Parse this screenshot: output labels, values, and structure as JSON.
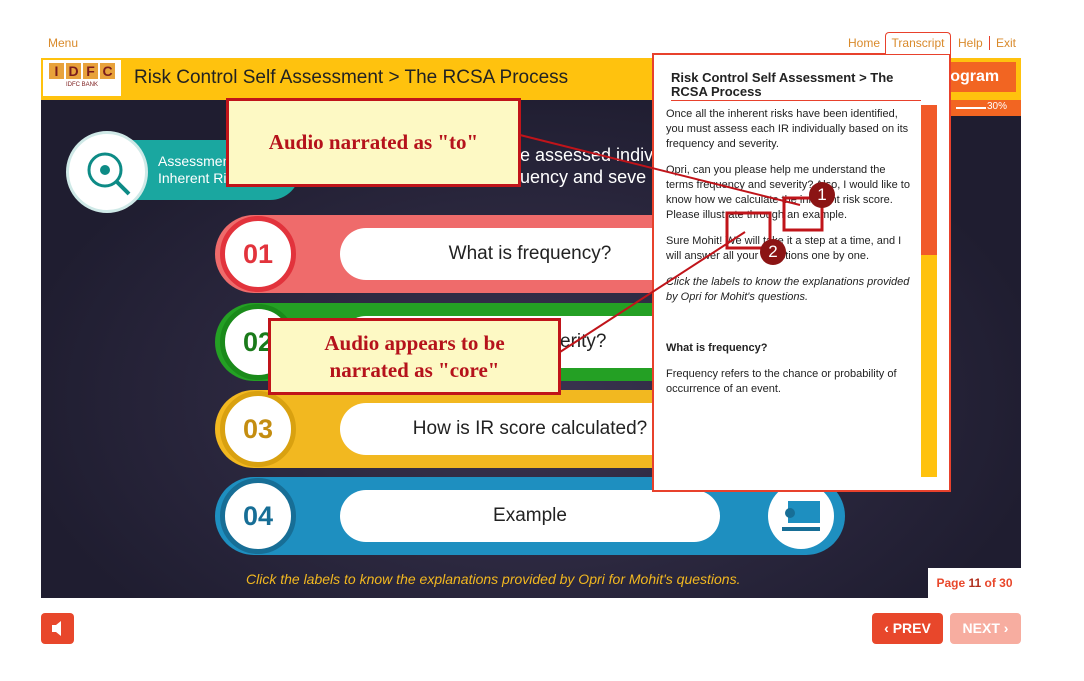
{
  "top_nav": {
    "menu": "Menu",
    "links": [
      "Home",
      "Transcript",
      "Help",
      "Exit"
    ]
  },
  "header": {
    "logo_letters": [
      "I",
      "D",
      "F",
      "C"
    ],
    "logo_caption": "IDFC BANK",
    "title": "Risk Control Self Assessment > The RCSA Process",
    "program_fragment": "rogram",
    "progress": "30%"
  },
  "topic": {
    "badge_lines": [
      "Assessmen",
      "Inherent Ri"
    ],
    "question_lines": [
      "e assessed indiv",
      "uency and seve"
    ]
  },
  "items": [
    {
      "number": "01",
      "label": "What is frequency?"
    },
    {
      "number": "02",
      "label": "erity?"
    },
    {
      "number": "03",
      "label": "How is IR score calculated?"
    },
    {
      "number": "04",
      "label": "Example"
    }
  ],
  "instruction": "Click the labels to know the explanations provided by Opri for Mohit's questions.",
  "pagination": {
    "prefix": "Page",
    "current": "11",
    "suffix": "of 30"
  },
  "buttons": {
    "prev": "PREV",
    "next": "NEXT"
  },
  "transcript": {
    "title": "Risk Control Self Assessment > The RCSA Process",
    "paragraphs": [
      "Once all the inherent risks have been identified, you must assess each IR individually based on its frequency and severity.",
      "Opri, can you please help me understand the terms frequency and severity? Also, I would like to know how we calculate the inherent risk score. Please illustrate through an example.",
      "Sure Mohit! We will take it a step at a time, and I will answer all your questions one by one.",
      "Click the labels to know the explanations provided by Opri for Mohit's questions."
    ],
    "subheading": "What is frequency?",
    "answer": "Frequency refers to the chance or probability of occurrence of an event."
  },
  "annotations": {
    "callouts": [
      "Audio narrated as \"to\"",
      "Audio appears to be narrated as \"core\""
    ],
    "markers": [
      "1",
      "2"
    ]
  }
}
